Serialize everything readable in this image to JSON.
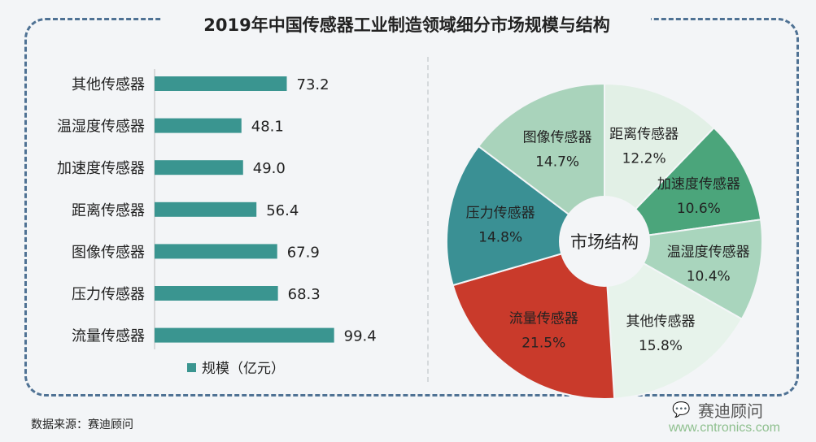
{
  "title": "2019年中国传感器工业制造领域细分市场规模与结构",
  "source": "数据来源：赛迪顾问",
  "watermark": {
    "brand": "赛迪顾问",
    "url": "www.cntronics.com",
    "icon": "wechat-icon"
  },
  "chart_data": [
    {
      "type": "bar",
      "orientation": "horizontal",
      "categories": [
        "其他传感器",
        "温湿度传感器",
        "加速度传感器",
        "距离传感器",
        "图像传感器",
        "压力传感器",
        "流量传感器"
      ],
      "values": [
        73.2,
        48.1,
        49.0,
        56.4,
        67.9,
        68.3,
        99.4
      ],
      "value_labels": [
        "73.2",
        "48.1",
        "49.0",
        "56.4",
        "67.9",
        "68.3",
        "99.4"
      ],
      "legend": "规模（亿元）",
      "legend_placement": "bottom",
      "color": "#3a9590",
      "grid": false
    },
    {
      "type": "pie",
      "donut": true,
      "center_label": "市场结构",
      "slices": [
        {
          "name": "距离传感器",
          "value": 12.2,
          "label": "12.2%",
          "color": "#e2f0e6"
        },
        {
          "name": "加速度传感器",
          "value": 10.6,
          "label": "10.6%",
          "color": "#4ba57b"
        },
        {
          "name": "温湿度传感器",
          "value": 10.4,
          "label": "10.4%",
          "color": "#a9d5bd"
        },
        {
          "name": "其他传感器",
          "value": 15.8,
          "label": "15.8%",
          "color": "#e7f3eb"
        },
        {
          "name": "流量传感器",
          "value": 21.5,
          "label": "21.5%",
          "color": "#c93a2b"
        },
        {
          "name": "压力传感器",
          "value": 14.8,
          "label": "14.8%",
          "color": "#3a9094"
        },
        {
          "name": "图像传感器",
          "value": 14.7,
          "label": "14.7%",
          "color": "#a9d3bb"
        }
      ]
    }
  ]
}
